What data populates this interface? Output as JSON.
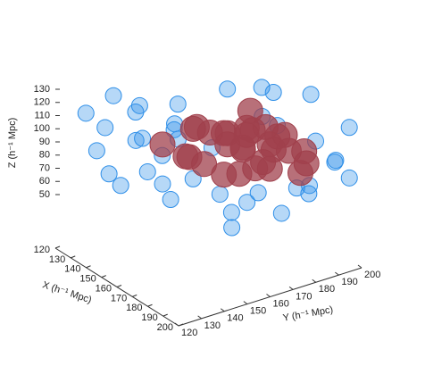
{
  "chart_data": {
    "type": "scatter3d",
    "xlabel": "X (h⁻¹ Mpc)",
    "ylabel": "Y (h⁻¹ Mpc)",
    "zlabel": "Z (h⁻¹ Mpc)",
    "xlim": [
      120,
      200
    ],
    "ylim": [
      120,
      200
    ],
    "zlim": [
      50,
      130
    ],
    "xticks": [
      120,
      130,
      140,
      150,
      160,
      170,
      180,
      190,
      200
    ],
    "yticks": [
      120,
      130,
      140,
      150,
      160,
      170,
      180,
      190,
      200
    ],
    "zticks": [
      50,
      60,
      70,
      80,
      90,
      100,
      110,
      120,
      130
    ],
    "series": [
      {
        "color": "#2f8fe8",
        "x": [
          125,
          130,
          128,
          135,
          140,
          132,
          145,
          150,
          138,
          155,
          160,
          170,
          150,
          165,
          175,
          180,
          185,
          190,
          195,
          188,
          178,
          170,
          160,
          150,
          145,
          185,
          195,
          198,
          192,
          175,
          140,
          130,
          165,
          155,
          190,
          200,
          180,
          135,
          150,
          170
        ],
        "y": [
          130,
          135,
          140,
          128,
          130,
          150,
          140,
          135,
          160,
          150,
          145,
          140,
          175,
          185,
          180,
          170,
          190,
          195,
          198,
          185,
          192,
          175,
          165,
          160,
          150,
          160,
          175,
          190,
          200,
          160,
          175,
          160,
          130,
          125,
          150,
          165,
          130,
          145,
          190,
          198
        ],
        "z": [
          110,
          100,
          120,
          90,
          75,
          85,
          125,
          105,
          95,
          128,
          115,
          118,
          122,
          125,
          110,
          126,
          100,
          85,
          75,
          65,
          60,
          58,
          55,
          62,
          60,
          70,
          80,
          95,
          110,
          55,
          70,
          65,
          95,
          80,
          60,
          70,
          85,
          110,
          115,
          120
        ]
      },
      {
        "color": "#a0404c",
        "x": [
          145,
          150,
          155,
          160,
          165,
          170,
          175,
          180,
          185,
          190,
          150,
          160,
          170,
          175,
          165,
          155,
          145,
          180,
          185,
          160,
          170,
          168,
          178,
          150,
          158,
          172,
          182,
          162,
          188,
          155
        ],
        "y": [
          150,
          160,
          170,
          175,
          165,
          180,
          185,
          175,
          170,
          180,
          175,
          185,
          160,
          165,
          190,
          155,
          165,
          160,
          185,
          150,
          170,
          175,
          178,
          185,
          162,
          150,
          188,
          178,
          165,
          180
        ],
        "z": [
          90,
          100,
          95,
          85,
          105,
          92,
          88,
          98,
          90,
          85,
          80,
          95,
          80,
          100,
          90,
          85,
          95,
          88,
          95,
          92,
          110,
          75,
          105,
          100,
          102,
          95,
          82,
          98,
          100,
          88
        ]
      }
    ]
  }
}
